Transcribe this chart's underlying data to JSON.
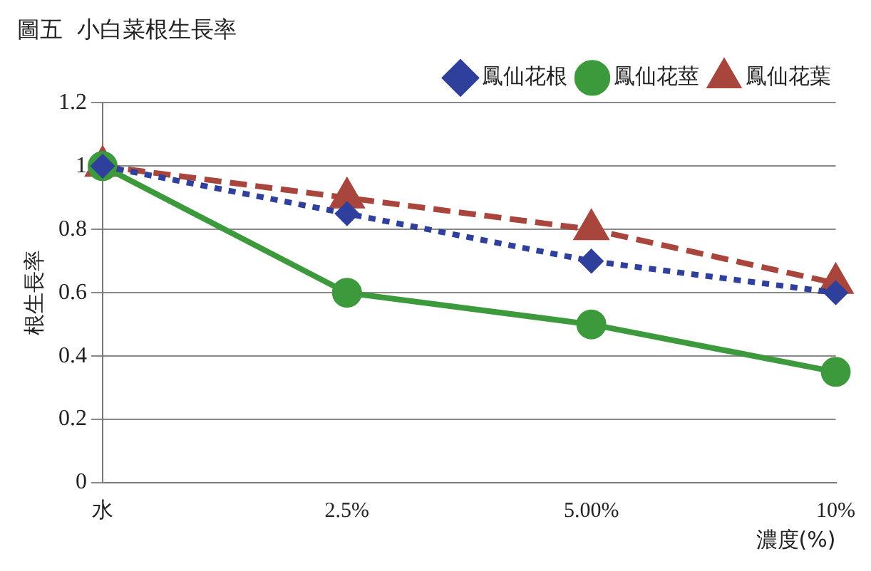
{
  "chart_data": {
    "type": "line",
    "title": "圖五  小白菜根生長率",
    "ylabel": "根生長率",
    "xlabel": "濃度(%)",
    "categories": [
      "水",
      "2.5%",
      "5.00%",
      "10%"
    ],
    "series": [
      {
        "name": "鳳仙花根",
        "color": "#2e3f9c",
        "values": [
          1,
          0.85,
          0.7,
          0.6
        ],
        "marker": "diamond",
        "line_style": "dotted"
      },
      {
        "name": "鳳仙花莖",
        "color": "#3c9a3c",
        "values": [
          1,
          0.6,
          0.5,
          0.35
        ],
        "marker": "circle",
        "line_style": "solid"
      },
      {
        "name": "鳳仙花葉",
        "color": "#a8453c",
        "values": [
          1,
          0.9,
          0.8,
          0.63
        ],
        "marker": "triangle",
        "line_style": "dashed"
      }
    ],
    "ylim": [
      0,
      1.2
    ],
    "yticks": [
      0,
      0.2,
      0.4,
      0.6,
      0.8,
      1,
      1.2
    ],
    "grid": "y",
    "legend": "top right"
  }
}
